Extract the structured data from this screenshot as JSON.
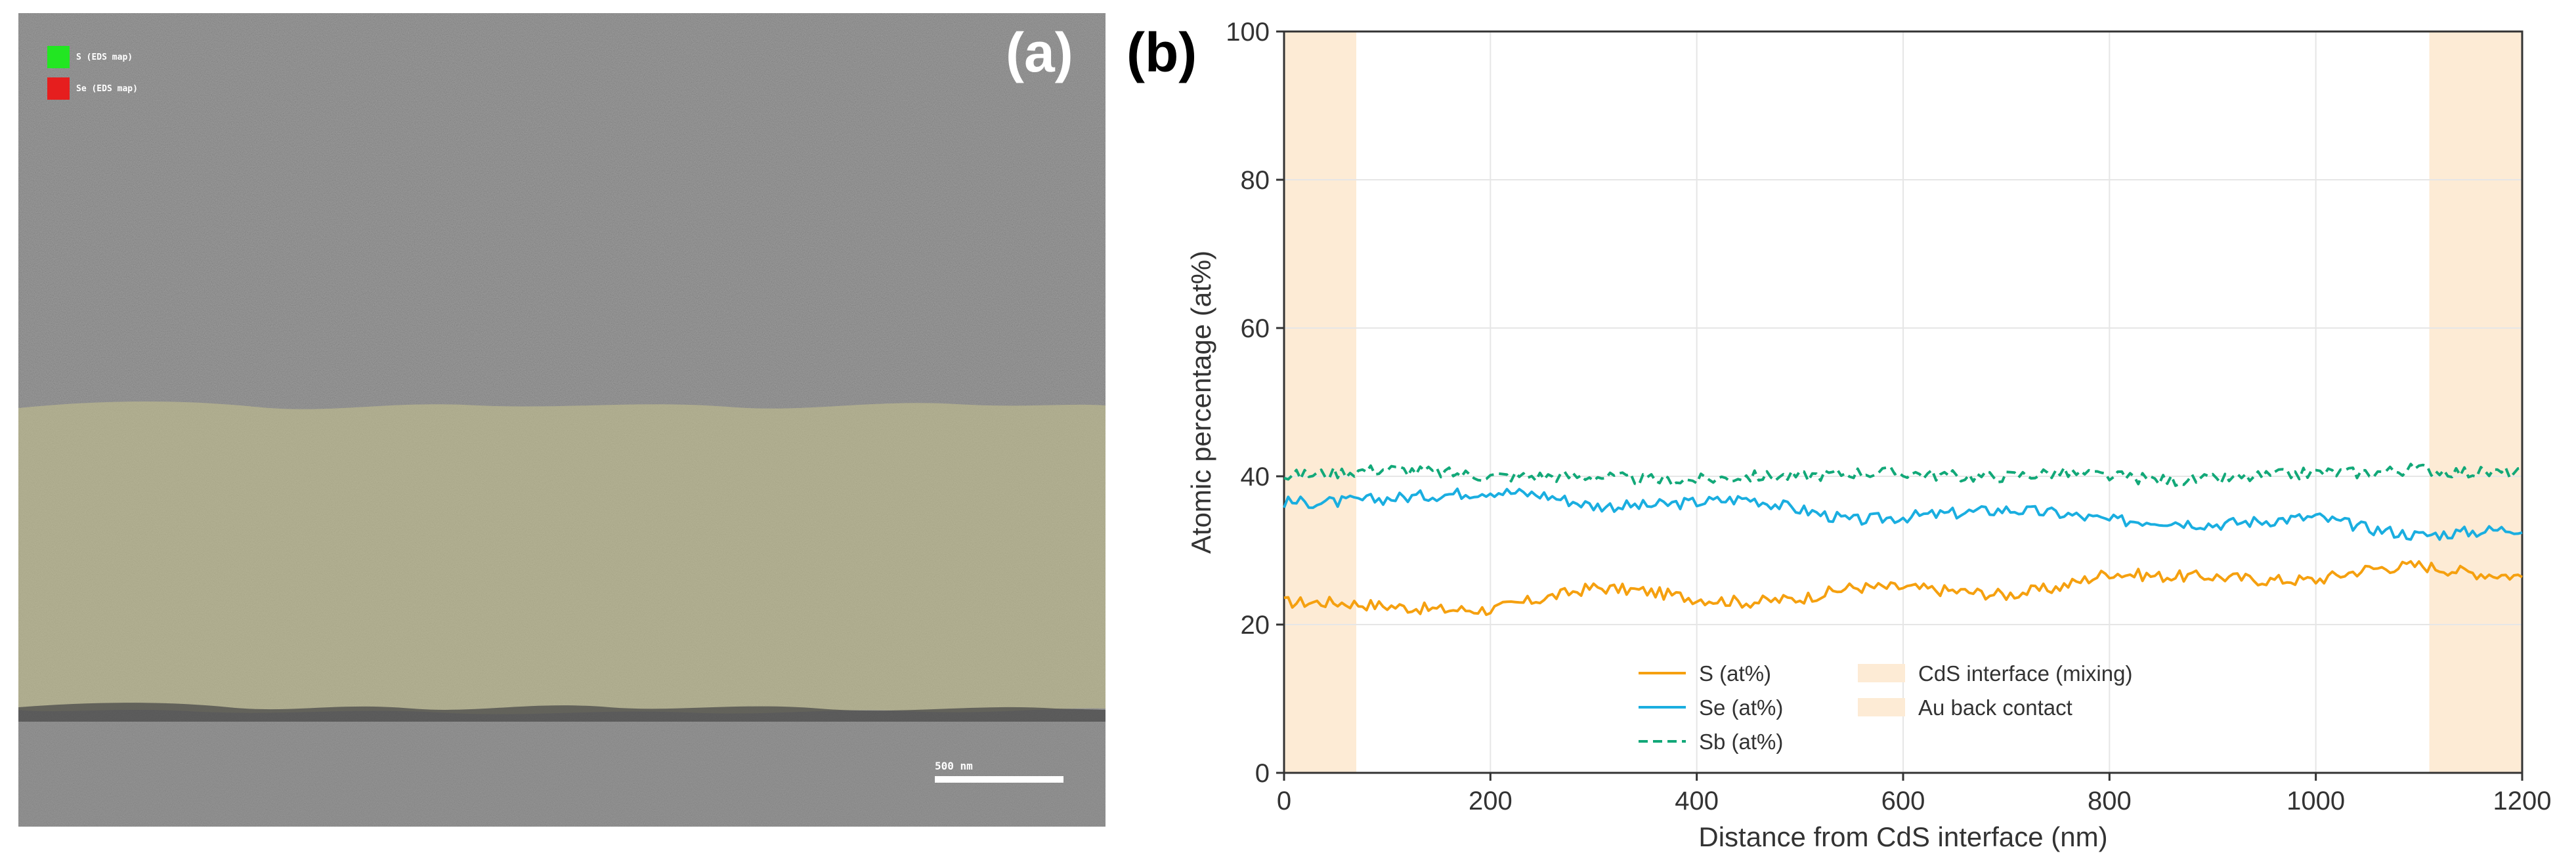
{
  "panel_a": {
    "label": "(a)",
    "legend": [
      {
        "name": "S (EDS map)",
        "color": "#22e622"
      },
      {
        "name": "Se (EDS map)",
        "color": "#e61e1e"
      }
    ],
    "scale_bar": "500 nm",
    "overlay_color": "#c9c48e"
  },
  "panel_b": {
    "label": "(b)"
  },
  "chart_data": {
    "type": "line",
    "title": "",
    "xlabel": "Distance from CdS interface (nm)",
    "ylabel": "Atomic percentage (at%)",
    "xlim": [
      0,
      1200
    ],
    "ylim": [
      0,
      100
    ],
    "xticks": [
      0,
      200,
      400,
      600,
      800,
      1000,
      1200
    ],
    "yticks": [
      0,
      20,
      40,
      60,
      80,
      100
    ],
    "grid": true,
    "legend_position": "bottom-center",
    "x": [
      0,
      50,
      100,
      150,
      200,
      250,
      300,
      350,
      400,
      450,
      500,
      550,
      600,
      650,
      700,
      750,
      800,
      850,
      900,
      950,
      1000,
      1050,
      1100,
      1150,
      1200
    ],
    "series": [
      {
        "name": "S (at%)",
        "color": "#f5a00f",
        "style": "solid",
        "values": [
          23,
          23,
          22.5,
          22,
          22,
          23.5,
          25,
          24.5,
          23.5,
          23,
          23.5,
          25,
          25,
          24.5,
          24,
          25,
          27,
          26.5,
          26.5,
          26,
          26,
          27.5,
          28,
          27,
          26.5
        ]
      },
      {
        "name": "Se (at%)",
        "color": "#1aaee0",
        "style": "solid",
        "values": [
          36.5,
          36.5,
          37,
          37.5,
          38,
          37.5,
          36,
          36,
          36.5,
          37,
          35.5,
          34,
          34.5,
          35,
          35.5,
          35,
          34,
          34,
          33.5,
          34,
          34.5,
          33,
          32,
          32.5,
          33
        ]
      },
      {
        "name": "Sb (at%)",
        "color": "#12a878",
        "style": "dashed",
        "values": [
          40,
          40.5,
          41,
          40.5,
          40,
          40,
          40,
          39.5,
          39.5,
          40,
          40,
          40.5,
          40.5,
          40,
          40,
          40.5,
          40,
          39.5,
          39.5,
          40,
          40.5,
          40.5,
          41,
          40.5,
          40.5
        ]
      }
    ],
    "regions": [
      {
        "name": "CdS interface (mixing)",
        "from": 0,
        "to": 70,
        "color": "#fdebd5"
      },
      {
        "name": "Au back contact",
        "from": 1110,
        "to": 1200,
        "color": "#fdebd5"
      }
    ]
  }
}
